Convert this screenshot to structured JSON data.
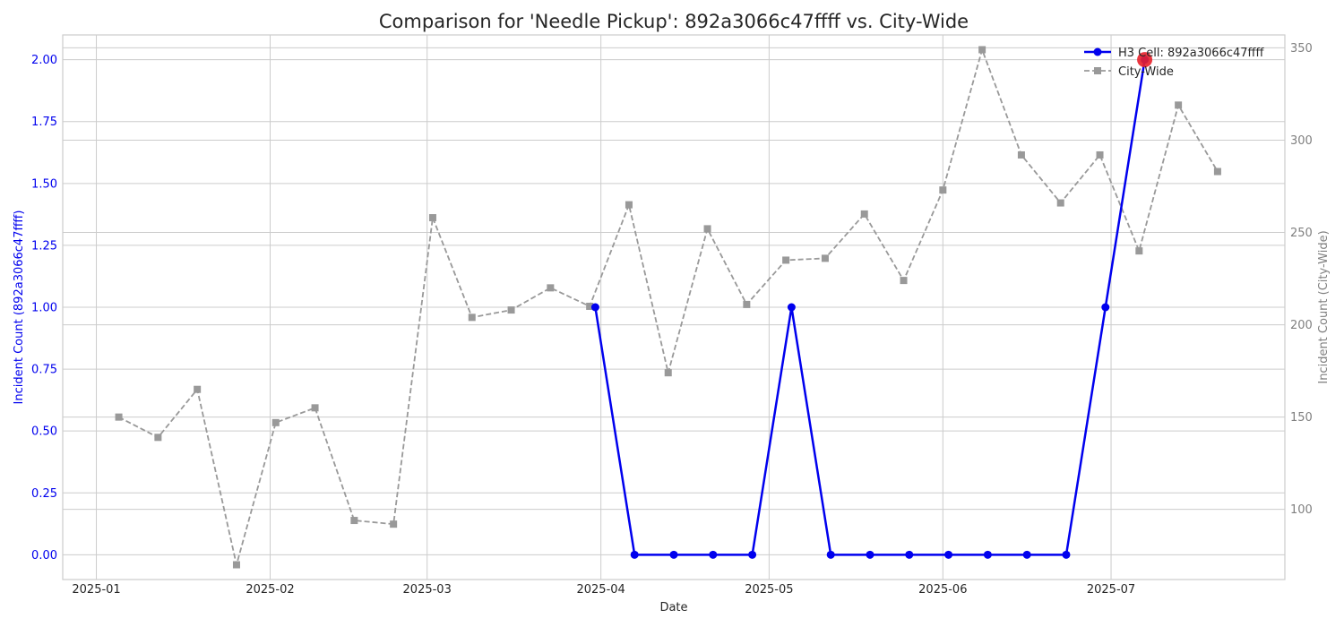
{
  "chart_data": {
    "type": "line",
    "title": "Comparison for 'Needle Pickup': 892a3066c47ffff vs. City-Wide",
    "xlabel": "Date",
    "ylabel_left": "Incident Count (892a3066c47ffff)",
    "ylabel_right": "Incident Count (City-Wide)",
    "x_ticks": [
      "2025-01",
      "2025-02",
      "2025-03",
      "2025-04",
      "2025-05",
      "2025-06",
      "2025-07"
    ],
    "x_range": [
      "2024-12-26",
      "2025-08-01"
    ],
    "ylim_left": [
      -0.1,
      2.1
    ],
    "ylim_right": [
      62,
      357
    ],
    "yticks_left": [
      "0.00",
      "0.25",
      "0.50",
      "0.75",
      "1.00",
      "1.25",
      "1.50",
      "1.75",
      "2.00"
    ],
    "yticks_right": [
      "100",
      "150",
      "200",
      "250",
      "300",
      "350"
    ],
    "grid": true,
    "legend_position": "top-right",
    "colors": {
      "cell": "#0000ee",
      "city": "#999999",
      "highlight": "#e8202a",
      "left_axis": "#0000ee",
      "right_axis": "#808080"
    },
    "series": [
      {
        "name": "H3 Cell: 892a3066c47ffff",
        "axis": "left",
        "points": [
          [
            "2025-03-31",
            1
          ],
          [
            "2025-04-07",
            0
          ],
          [
            "2025-04-14",
            0
          ],
          [
            "2025-04-21",
            0
          ],
          [
            "2025-04-28",
            0
          ],
          [
            "2025-05-05",
            1
          ],
          [
            "2025-05-12",
            0
          ],
          [
            "2025-05-19",
            0
          ],
          [
            "2025-05-26",
            0
          ],
          [
            "2025-06-02",
            0
          ],
          [
            "2025-06-09",
            0
          ],
          [
            "2025-06-16",
            0
          ],
          [
            "2025-06-23",
            0
          ],
          [
            "2025-06-30",
            1
          ],
          [
            "2025-07-07",
            2
          ]
        ]
      },
      {
        "name": "City-Wide",
        "axis": "right",
        "points": [
          [
            "2025-01-05",
            150
          ],
          [
            "2025-01-12",
            139
          ],
          [
            "2025-01-19",
            165
          ],
          [
            "2025-01-26",
            70
          ],
          [
            "2025-02-02",
            147
          ],
          [
            "2025-02-09",
            155
          ],
          [
            "2025-02-16",
            94
          ],
          [
            "2025-02-23",
            92
          ],
          [
            "2025-03-02",
            258
          ],
          [
            "2025-03-09",
            204
          ],
          [
            "2025-03-16",
            208
          ],
          [
            "2025-03-23",
            220
          ],
          [
            "2025-03-30",
            210
          ],
          [
            "2025-04-06",
            265
          ],
          [
            "2025-04-13",
            174
          ],
          [
            "2025-04-20",
            252
          ],
          [
            "2025-04-27",
            211
          ],
          [
            "2025-05-04",
            235
          ],
          [
            "2025-05-11",
            236
          ],
          [
            "2025-05-18",
            260
          ],
          [
            "2025-05-25",
            224
          ],
          [
            "2025-06-01",
            273
          ],
          [
            "2025-06-08",
            349
          ],
          [
            "2025-06-15",
            292
          ],
          [
            "2025-06-22",
            266
          ],
          [
            "2025-06-29",
            292
          ],
          [
            "2025-07-06",
            240
          ],
          [
            "2025-07-13",
            319
          ],
          [
            "2025-07-20",
            283
          ]
        ]
      }
    ],
    "highlight_point": [
      "2025-07-07",
      2
    ]
  }
}
